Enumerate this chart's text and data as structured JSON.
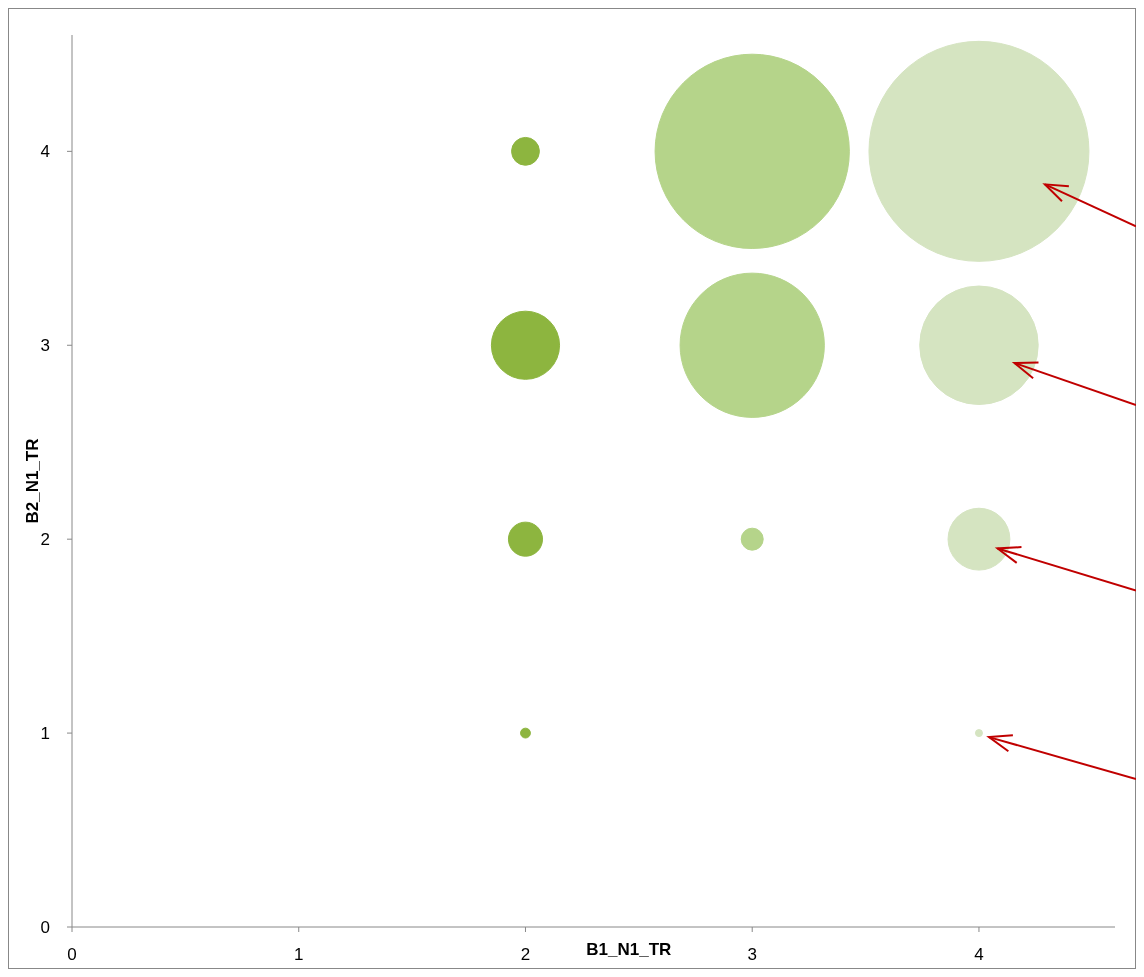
{
  "chart_data": {
    "type": "bubble",
    "xlabel": "B1_N1_TR",
    "ylabel": "B2_N1_TR",
    "xlim": [
      0,
      4.6
    ],
    "ylim": [
      0,
      4.6
    ],
    "xticks": [
      0,
      1,
      2,
      3,
      4
    ],
    "yticks": [
      0,
      1,
      2,
      3,
      4
    ],
    "grid": false,
    "series": [
      {
        "color": "#8db53f",
        "x": [
          2,
          2,
          2,
          2
        ],
        "values": [
          4,
          3,
          2,
          1
        ],
        "sizes": [
          0.016,
          0.096,
          0.024,
          0.002
        ]
      },
      {
        "color": "#b5d48a",
        "x": [
          3,
          3,
          3
        ],
        "values": [
          4,
          3,
          2
        ],
        "sizes": [
          0.78,
          0.43,
          0.01
        ]
      },
      {
        "color": "#d5e4c1",
        "x": [
          4,
          4,
          4,
          4
        ],
        "values": [
          4,
          3,
          2,
          1
        ],
        "sizes": [
          1,
          0.29,
          0.079,
          0.001
        ]
      }
    ]
  }
}
